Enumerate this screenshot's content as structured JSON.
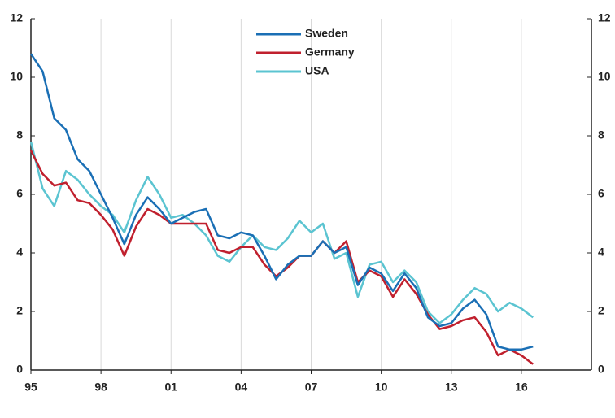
{
  "chart_data": {
    "type": "line",
    "x": [
      1995,
      1995.5,
      1996,
      1996.5,
      1997,
      1997.5,
      1998,
      1998.5,
      1999,
      1999.5,
      2000,
      2000.5,
      2001,
      2001.5,
      2002,
      2002.5,
      2003,
      2003.5,
      2004,
      2004.5,
      2005,
      2005.5,
      2006,
      2006.5,
      2007,
      2007.5,
      2008,
      2008.5,
      2009,
      2009.5,
      2010,
      2010.5,
      2011,
      2011.5,
      2012,
      2012.5,
      2013,
      2013.5,
      2014,
      2014.5,
      2015,
      2015.5,
      2016,
      2016.5
    ],
    "series": [
      {
        "name": "Sweden",
        "color": "#1a6fb5",
        "values": [
          10.8,
          10.2,
          8.6,
          8.2,
          7.2,
          6.8,
          6.0,
          5.2,
          4.3,
          5.3,
          5.9,
          5.5,
          5.0,
          5.2,
          5.4,
          5.5,
          4.6,
          4.5,
          4.7,
          4.6,
          3.9,
          3.1,
          3.6,
          3.9,
          3.9,
          4.4,
          4.0,
          4.2,
          2.9,
          3.5,
          3.3,
          2.7,
          3.3,
          2.8,
          1.8,
          1.5,
          1.6,
          2.1,
          2.4,
          1.9,
          0.8,
          0.7,
          0.7,
          0.8
        ]
      },
      {
        "name": "Germany",
        "color": "#c0202e",
        "values": [
          7.5,
          6.7,
          6.3,
          6.4,
          5.8,
          5.7,
          5.3,
          4.8,
          3.9,
          4.9,
          5.5,
          5.3,
          5.0,
          5.0,
          5.0,
          5.0,
          4.1,
          4.0,
          4.2,
          4.2,
          3.6,
          3.2,
          3.5,
          3.9,
          3.9,
          4.4,
          4.0,
          4.4,
          3.0,
          3.4,
          3.2,
          2.5,
          3.1,
          2.6,
          1.9,
          1.4,
          1.5,
          1.7,
          1.8,
          1.3,
          0.5,
          0.7,
          0.5,
          0.2
        ]
      },
      {
        "name": "USA",
        "color": "#5bc4d1",
        "values": [
          7.8,
          6.2,
          5.6,
          6.8,
          6.5,
          6.0,
          5.6,
          5.3,
          4.7,
          5.8,
          6.6,
          6.0,
          5.2,
          5.3,
          5.0,
          4.6,
          3.9,
          3.7,
          4.2,
          4.6,
          4.2,
          4.1,
          4.5,
          5.1,
          4.7,
          5.0,
          3.8,
          4.0,
          2.5,
          3.6,
          3.7,
          3.0,
          3.4,
          3.0,
          2.0,
          1.6,
          1.9,
          2.4,
          2.8,
          2.6,
          2.0,
          2.3,
          2.1,
          1.8
        ]
      }
    ],
    "xlim": [
      1995,
      2019
    ],
    "xticks": [
      {
        "value": 1995,
        "label": "95"
      },
      {
        "value": 1998,
        "label": "98"
      },
      {
        "value": 2001,
        "label": "01"
      },
      {
        "value": 2004,
        "label": "04"
      },
      {
        "value": 2007,
        "label": "07"
      },
      {
        "value": 2010,
        "label": "10"
      },
      {
        "value": 2013,
        "label": "13"
      },
      {
        "value": 2016,
        "label": "16"
      }
    ],
    "ylim": [
      0,
      12
    ],
    "yticks": [
      0,
      2,
      4,
      6,
      8,
      10,
      12
    ],
    "y2lim": [
      0,
      12
    ],
    "y2ticks": [
      0,
      2,
      4,
      6,
      8,
      10,
      12
    ],
    "grid": true,
    "legend": "top"
  }
}
